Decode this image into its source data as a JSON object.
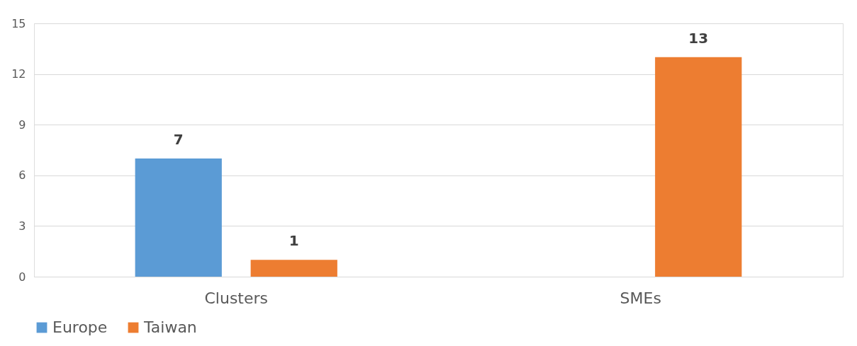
{
  "chart_data": {
    "type": "bar",
    "categories": [
      "Clusters",
      "SMEs"
    ],
    "series": [
      {
        "name": "Europe",
        "color": "#5b9bd5",
        "values": [
          7,
          null
        ]
      },
      {
        "name": "Taiwan",
        "color": "#ed7d31",
        "values": [
          1,
          13
        ]
      }
    ],
    "ylim": [
      0,
      15
    ],
    "yticks": [
      0,
      3,
      6,
      9,
      12,
      15
    ],
    "grid": "y",
    "legend": "bottom",
    "data_labels": true
  }
}
